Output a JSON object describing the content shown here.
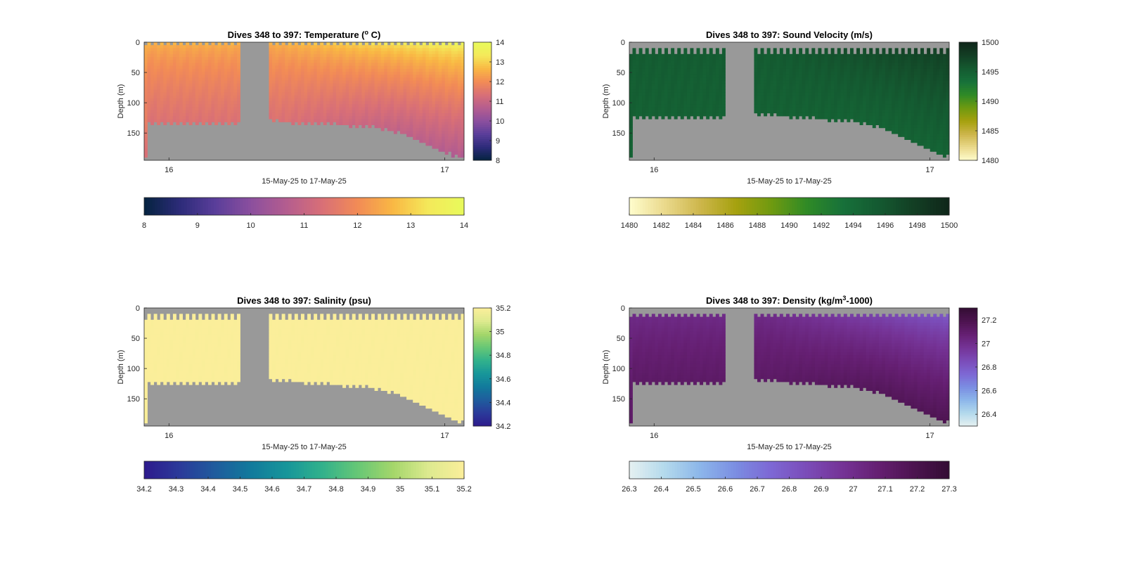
{
  "figure": {
    "x_axis_label": "15-May-25 to 17-May-25",
    "y_axis_label": "Depth (m)",
    "mask_color": "#999999",
    "time_axis": {
      "start_day": 15.91,
      "end_day": 17.07,
      "tick_labels": [
        "16",
        "17"
      ]
    },
    "depth_axis": {
      "ticks": [
        0,
        50,
        100,
        150
      ],
      "range": [
        0,
        195
      ]
    }
  },
  "chart_data": [
    {
      "type": "heatmap",
      "id": "temperature",
      "title": "Dives 348 to 397: Temperature (",
      "title_sup": "o",
      "title_tail": " C)",
      "colormap": "thermal",
      "colormap_stops": [
        "#04233f",
        "#2c2b79",
        "#5a3e9a",
        "#8b4f9e",
        "#b45d8f",
        "#d86f77",
        "#f28b56",
        "#f9b844",
        "#f4e95a",
        "#e8fa5b"
      ],
      "side_colorbar": {
        "range": [
          8,
          14
        ],
        "tick_values": [
          8,
          9,
          10,
          11,
          12,
          13,
          14
        ],
        "tick_labels": [
          "8",
          "9",
          "10",
          "11",
          "12",
          "13",
          "14"
        ]
      },
      "bottom_colorbar": {
        "range": [
          8,
          14
        ],
        "tick_values": [
          8,
          9,
          10,
          11,
          12,
          13,
          14
        ],
        "tick_labels": [
          "8",
          "9",
          "10",
          "11",
          "12",
          "13",
          "14"
        ]
      },
      "value_profile": {
        "surface": 12.6,
        "deep": 11.4,
        "late_surface": 13.8,
        "late_deep": 10.6
      },
      "top_gap_m": 4,
      "coverage": [
        {
          "day": 15.92,
          "max_depth": 132
        },
        {
          "day": 16.0,
          "max_depth": 133
        },
        {
          "day": 16.25,
          "max_depth": 132
        },
        {
          "day": 16.27,
          "max_depth": 0
        },
        {
          "day": 16.35,
          "max_depth": 0
        },
        {
          "day": 16.37,
          "max_depth": 130
        },
        {
          "day": 16.6,
          "max_depth": 135
        },
        {
          "day": 16.75,
          "max_depth": 140
        },
        {
          "day": 16.85,
          "max_depth": 150
        },
        {
          "day": 16.95,
          "max_depth": 172
        },
        {
          "day": 17.05,
          "max_depth": 190
        }
      ]
    },
    {
      "type": "heatmap",
      "id": "sound_velocity",
      "title": "Dives 348 to 397: Sound Velocity (m/s)",
      "title_sup": "",
      "title_tail": "",
      "colormap": "speed",
      "colormap_stops": [
        "#fffdcd",
        "#ead98c",
        "#cdb64b",
        "#a6a10f",
        "#6f9a10",
        "#2f8a26",
        "#17713a",
        "#145a31",
        "#133f24",
        "#0f261a"
      ],
      "side_colorbar": {
        "range": [
          1480,
          1500
        ],
        "tick_values": [
          1480,
          1485,
          1490,
          1495,
          1500
        ],
        "tick_labels": [
          "1480",
          "1485",
          "1490",
          "1495",
          "1500"
        ]
      },
      "bottom_colorbar": {
        "range": [
          1480,
          1500
        ],
        "tick_values": [
          1480,
          1482,
          1484,
          1486,
          1488,
          1490,
          1492,
          1494,
          1496,
          1498,
          1500
        ],
        "tick_labels": [
          "1480",
          "1482",
          "1484",
          "1486",
          "1488",
          "1490",
          "1492",
          "1494",
          "1496",
          "1498",
          "1500"
        ]
      },
      "value_profile": {
        "surface": 1495.6,
        "deep": 1494.9,
        "late_surface": 1498.6,
        "late_deep": 1494.6
      },
      "top_gap_m": 15,
      "coverage": [
        {
          "day": 15.92,
          "max_depth": 122
        },
        {
          "day": 16.0,
          "max_depth": 124
        },
        {
          "day": 16.25,
          "max_depth": 122
        },
        {
          "day": 16.27,
          "max_depth": 0
        },
        {
          "day": 16.35,
          "max_depth": 0
        },
        {
          "day": 16.37,
          "max_depth": 118
        },
        {
          "day": 16.6,
          "max_depth": 126
        },
        {
          "day": 16.75,
          "max_depth": 132
        },
        {
          "day": 16.85,
          "max_depth": 145
        },
        {
          "day": 16.95,
          "max_depth": 168
        },
        {
          "day": 17.05,
          "max_depth": 186
        }
      ]
    },
    {
      "type": "heatmap",
      "id": "salinity",
      "title": "Dives 348 to 397: Salinity (psu)",
      "title_sup": "",
      "title_tail": "",
      "colormap": "viridis",
      "colormap_stops": [
        "#2d1a8c",
        "#2b3a9a",
        "#1f5c9d",
        "#127a9c",
        "#17969a",
        "#31b18c",
        "#66c776",
        "#a4d66a",
        "#ddea8f",
        "#fbee9a"
      ],
      "side_colorbar": {
        "range": [
          34.2,
          35.2
        ],
        "tick_values": [
          34.2,
          34.4,
          34.6,
          34.8,
          35,
          35.2
        ],
        "tick_labels": [
          "34.2",
          "34.4",
          "34.6",
          "34.8",
          "35",
          "35.2"
        ]
      },
      "bottom_colorbar": {
        "range": [
          34.2,
          35.2
        ],
        "tick_values": [
          34.2,
          34.3,
          34.4,
          34.5,
          34.6,
          34.7,
          34.8,
          34.9,
          35,
          35.1,
          35.2
        ],
        "tick_labels": [
          "34.2",
          "34.3",
          "34.4",
          "34.5",
          "34.6",
          "34.7",
          "34.8",
          "34.9",
          "35",
          "35.1",
          "35.2"
        ]
      },
      "value_profile": {
        "surface": 35.2,
        "deep": 35.2,
        "late_surface": 35.2,
        "late_deep": 35.2
      },
      "top_gap_m": 15,
      "coverage": [
        {
          "day": 15.92,
          "max_depth": 124
        },
        {
          "day": 16.0,
          "max_depth": 124
        },
        {
          "day": 16.25,
          "max_depth": 124
        },
        {
          "day": 16.27,
          "max_depth": 0
        },
        {
          "day": 16.35,
          "max_depth": 0
        },
        {
          "day": 16.37,
          "max_depth": 118
        },
        {
          "day": 16.6,
          "max_depth": 126
        },
        {
          "day": 16.75,
          "max_depth": 132
        },
        {
          "day": 16.85,
          "max_depth": 145
        },
        {
          "day": 16.95,
          "max_depth": 168
        },
        {
          "day": 17.05,
          "max_depth": 186
        }
      ]
    },
    {
      "type": "heatmap",
      "id": "density",
      "title": "Dives 348 to 397: Density (kg/m",
      "title_sup": "3",
      "title_tail": "-1000)",
      "colormap": "dense",
      "colormap_stops": [
        "#e6f1f1",
        "#b3d9ec",
        "#8cb6ea",
        "#7b8de2",
        "#7d67d4",
        "#7b4cb8",
        "#753396",
        "#651f72",
        "#4d1450",
        "#330d34"
      ],
      "side_colorbar": {
        "range": [
          26.3,
          27.3
        ],
        "tick_values": [
          26.4,
          26.6,
          26.8,
          27,
          27.2
        ],
        "tick_labels": [
          "26.4",
          "26.6",
          "26.8",
          "27",
          "27.2"
        ]
      },
      "bottom_colorbar": {
        "range": [
          26.3,
          27.3
        ],
        "tick_values": [
          26.3,
          26.4,
          26.5,
          26.6,
          26.7,
          26.8,
          26.9,
          27,
          27.1,
          27.2,
          27.3
        ],
        "tick_labels": [
          "26.3",
          "26.4",
          "26.5",
          "26.6",
          "26.7",
          "26.8",
          "26.9",
          "27",
          "27.1",
          "27.2",
          "27.3"
        ]
      },
      "value_profile": {
        "surface": 26.98,
        "deep": 27.12,
        "late_surface": 26.72,
        "late_deep": 27.18
      },
      "top_gap_m": 12,
      "coverage": [
        {
          "day": 15.92,
          "max_depth": 124
        },
        {
          "day": 16.0,
          "max_depth": 124
        },
        {
          "day": 16.25,
          "max_depth": 124
        },
        {
          "day": 16.27,
          "max_depth": 0
        },
        {
          "day": 16.35,
          "max_depth": 0
        },
        {
          "day": 16.37,
          "max_depth": 118
        },
        {
          "day": 16.6,
          "max_depth": 126
        },
        {
          "day": 16.75,
          "max_depth": 132
        },
        {
          "day": 16.85,
          "max_depth": 145
        },
        {
          "day": 16.95,
          "max_depth": 168
        },
        {
          "day": 17.05,
          "max_depth": 186
        }
      ]
    }
  ]
}
